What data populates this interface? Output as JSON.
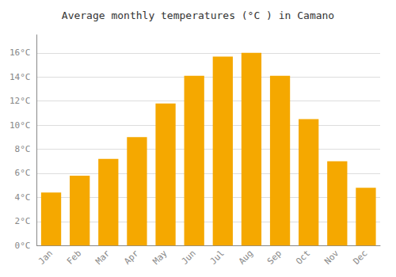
{
  "chart_data": {
    "type": "bar",
    "title": "Average monthly temperatures (°C ) in Camano",
    "categories": [
      "Jan",
      "Feb",
      "Mar",
      "Apr",
      "May",
      "Jun",
      "Jul",
      "Aug",
      "Sep",
      "Oct",
      "Nov",
      "Dec"
    ],
    "values": [
      4.4,
      5.8,
      7.2,
      9.0,
      11.8,
      14.1,
      15.7,
      16.0,
      14.1,
      10.5,
      7.0,
      4.8
    ],
    "color": "#F5A800",
    "ylim": [
      0,
      17.5
    ],
    "yticks": [
      {
        "value": 0,
        "label": "0°C"
      },
      {
        "value": 2,
        "label": "2°C"
      },
      {
        "value": 4,
        "label": "4°C"
      },
      {
        "value": 6,
        "label": "6°C"
      },
      {
        "value": 8,
        "label": "8°C"
      },
      {
        "value": 10,
        "label": "10°C"
      },
      {
        "value": 12,
        "label": "12°C"
      },
      {
        "value": 14,
        "label": "14°C"
      },
      {
        "value": 16,
        "label": "16°C"
      }
    ],
    "grid": true
  }
}
